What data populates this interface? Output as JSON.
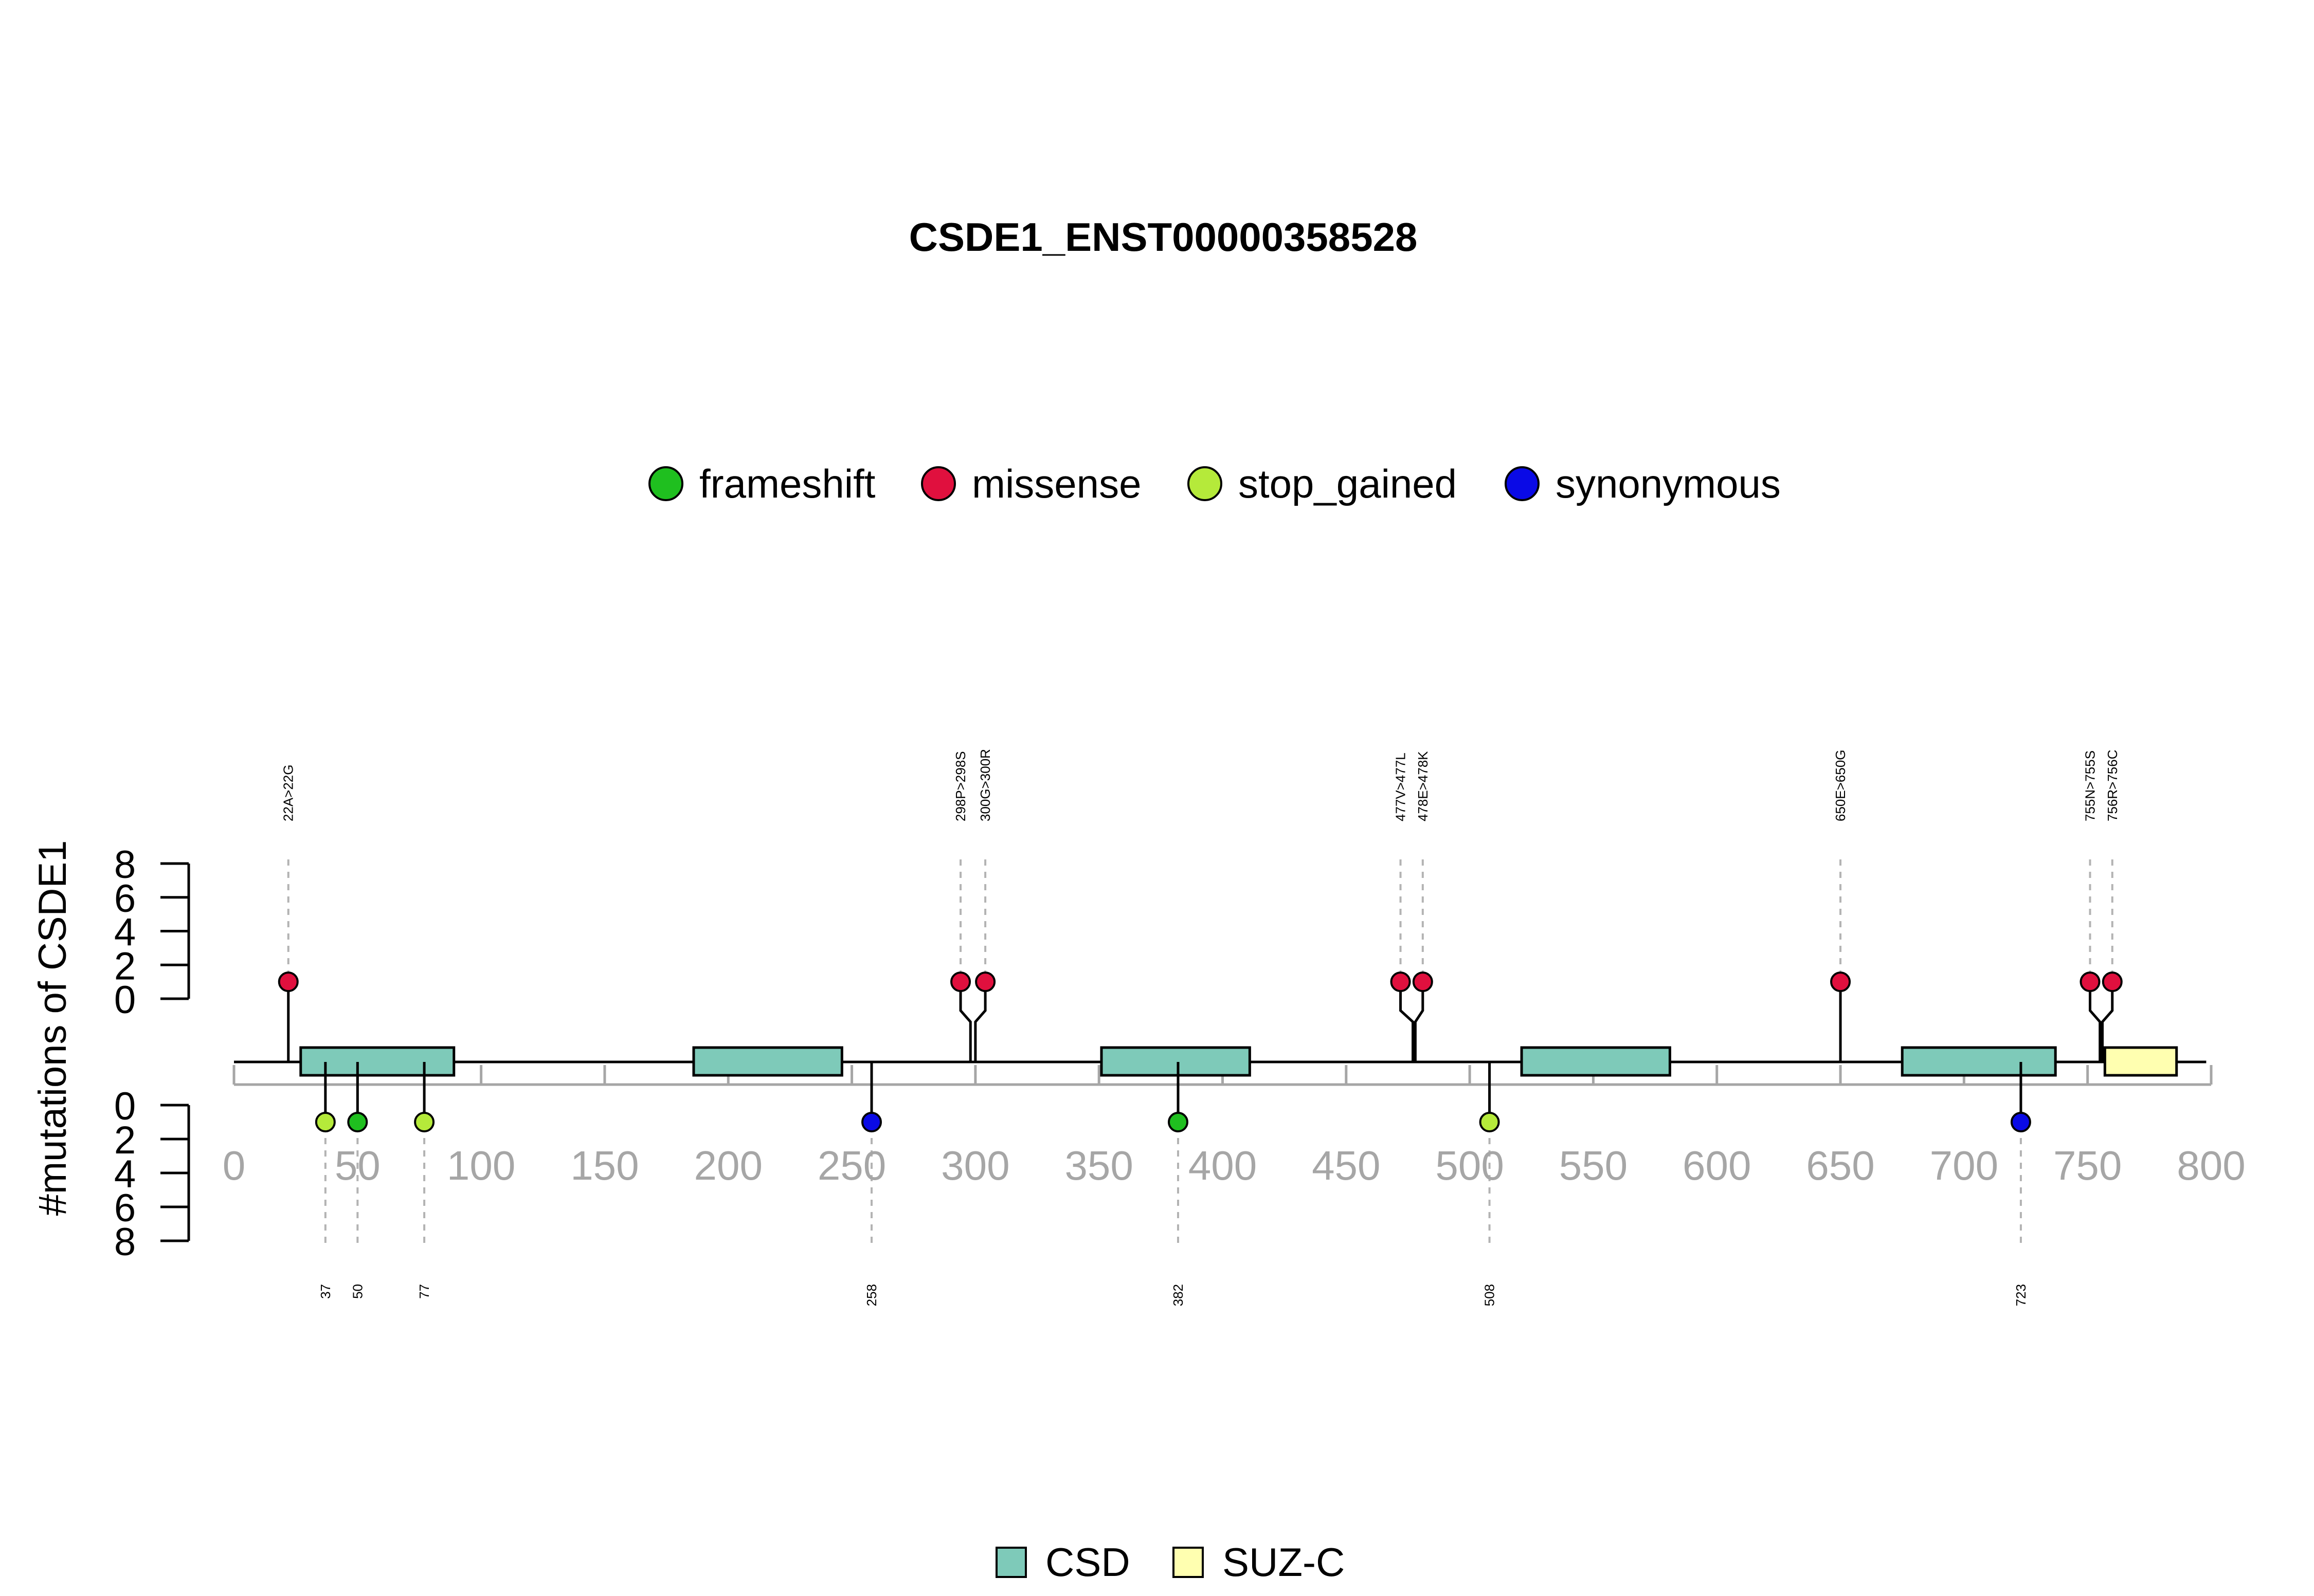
{
  "chart_data": {
    "type": "lollipop",
    "title": "CSDE1_ENST00000358528",
    "ylabel": "#mutations of CSDE1",
    "protein_length": 798,
    "xlim": [
      0,
      800
    ],
    "x_ticks": [
      0,
      50,
      100,
      150,
      200,
      250,
      300,
      350,
      400,
      450,
      500,
      550,
      600,
      650,
      700,
      750,
      800
    ],
    "ylim": [
      0,
      8
    ],
    "y_ticks": [
      0,
      2,
      4,
      6,
      8
    ],
    "mutation_legend": [
      {
        "label": "frameshift",
        "color": "#1fbf1f"
      },
      {
        "label": "missense",
        "color": "#e0103e"
      },
      {
        "label": "stop_gained",
        "color": "#b5ea3a"
      },
      {
        "label": "synonymous",
        "color": "#0a0ae6"
      }
    ],
    "domain_legend": [
      {
        "label": "CSD",
        "color": "#7ecab9"
      },
      {
        "label": "SUZ-C",
        "color": "#ffffb0"
      }
    ],
    "domains": [
      {
        "name": "CSD",
        "start": 27,
        "end": 89
      },
      {
        "name": "CSD",
        "start": 186,
        "end": 246
      },
      {
        "name": "CSD",
        "start": 351,
        "end": 411
      },
      {
        "name": "CSD",
        "start": 521,
        "end": 581
      },
      {
        "name": "CSD",
        "start": 675,
        "end": 737
      },
      {
        "name": "SUZ-C",
        "start": 757,
        "end": 786
      }
    ],
    "top_mutations": [
      {
        "label": "22A>22G",
        "position": 22,
        "count": 1,
        "type": "missense",
        "draw_x": 22
      },
      {
        "label": "298P>298S",
        "position": 298,
        "count": 1,
        "type": "missense",
        "draw_x": 294
      },
      {
        "label": "300G>300R",
        "position": 300,
        "count": 1,
        "type": "missense",
        "draw_x": 304
      },
      {
        "label": "477V>477L",
        "position": 477,
        "count": 1,
        "type": "missense",
        "draw_x": 472
      },
      {
        "label": "478E>478K",
        "position": 478,
        "count": 1,
        "type": "missense",
        "draw_x": 481
      },
      {
        "label": "650E>650G",
        "position": 650,
        "count": 1,
        "type": "missense",
        "draw_x": 650
      },
      {
        "label": "755N>755S",
        "position": 755,
        "count": 1,
        "type": "missense",
        "draw_x": 751
      },
      {
        "label": "756R>756C",
        "position": 756,
        "count": 1,
        "type": "missense",
        "draw_x": 760
      }
    ],
    "bottom_mutations": [
      {
        "label": "37",
        "position": 37,
        "count": 1,
        "type": "stop_gained"
      },
      {
        "label": "50",
        "position": 50,
        "count": 1,
        "type": "frameshift"
      },
      {
        "label": "77",
        "position": 77,
        "count": 1,
        "type": "stop_gained"
      },
      {
        "label": "258",
        "position": 258,
        "count": 1,
        "type": "synonymous"
      },
      {
        "label": "382",
        "position": 382,
        "count": 1,
        "type": "frameshift"
      },
      {
        "label": "508",
        "position": 508,
        "count": 1,
        "type": "stop_gained"
      },
      {
        "label": "723",
        "position": 723,
        "count": 1,
        "type": "synonymous"
      }
    ]
  }
}
